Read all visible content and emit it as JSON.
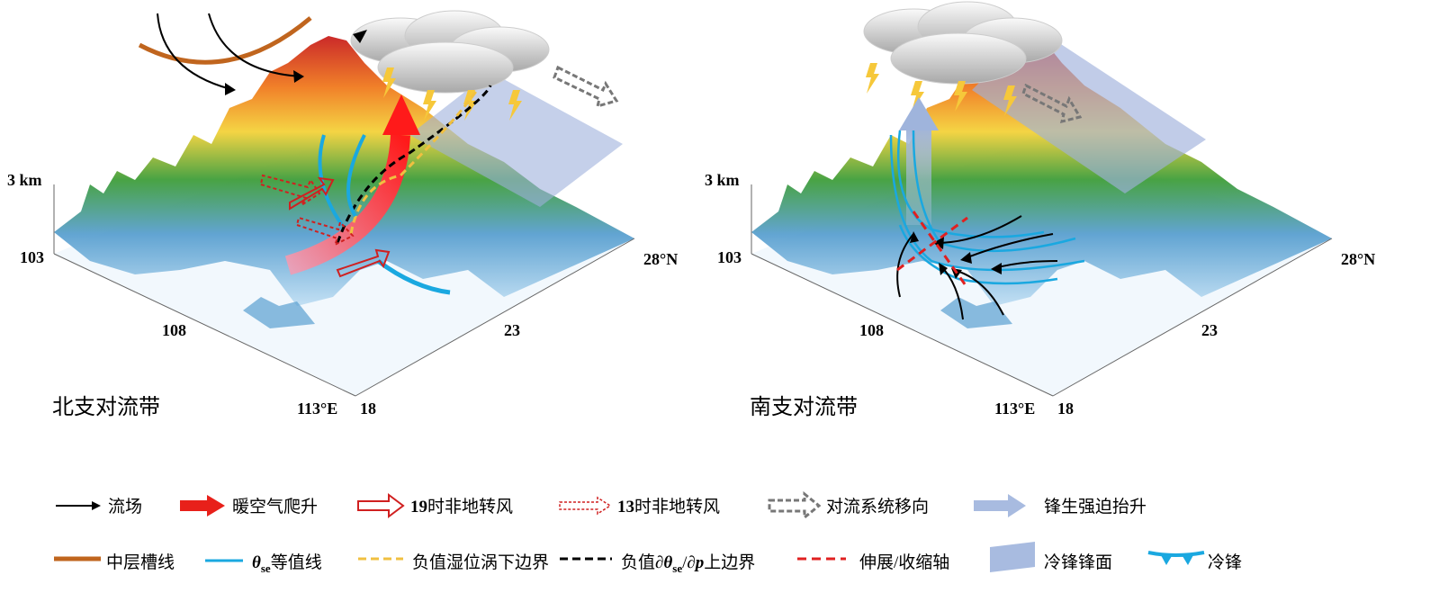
{
  "panels": [
    {
      "label": "北支对流带",
      "z_label": "3 km",
      "x_labels": [
        "103",
        "108",
        "113°E"
      ],
      "y_labels": [
        "18",
        "23",
        "28°N"
      ]
    },
    {
      "label": "南支对流带",
      "z_label": "3 km",
      "x_labels": [
        "103",
        "108",
        "113°E"
      ],
      "y_labels": [
        "18",
        "23",
        "28°N"
      ]
    }
  ],
  "legend": [
    {
      "label": "流场"
    },
    {
      "label": "暖空气爬升"
    },
    {
      "parts": [
        "19",
        "时非地转风"
      ]
    },
    {
      "parts": [
        "13",
        "时非地转风"
      ]
    },
    {
      "label": "对流系统移向"
    },
    {
      "label": "锋生强迫抬升"
    },
    {
      "label": "中层槽线"
    },
    {
      "parts": [
        "θ",
        "se",
        "等值线"
      ]
    },
    {
      "label": "负值湿位涡下边界"
    },
    {
      "parts": [
        "负值∂",
        "θ",
        "se",
        "/∂",
        "p",
        "上边界"
      ]
    },
    {
      "label": "伸展/收缩轴"
    },
    {
      "label": "冷锋锋面"
    },
    {
      "label": "冷锋"
    }
  ]
}
